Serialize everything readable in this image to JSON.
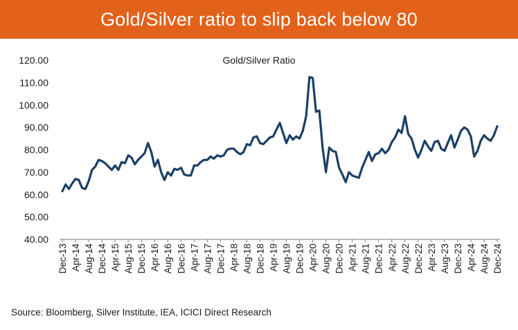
{
  "header": {
    "title": "Gold/Silver ratio to slip back below 80",
    "background_color": "#E2621B"
  },
  "footer": {
    "source": "Source: Bloomberg, Silver Institute, IEA, ICICI Direct Research"
  },
  "chart_data": {
    "type": "line",
    "title": "Gold/Silver Ratio",
    "xlabel": "",
    "ylabel": "",
    "ylim": [
      40,
      120
    ],
    "y_ticks": [
      "40.00",
      "50.00",
      "60.00",
      "70.00",
      "80.00",
      "90.00",
      "100.00",
      "110.00",
      "120.00"
    ],
    "grid": false,
    "legend": "none",
    "line_color": "#1B3F66",
    "x_tick_labels": [
      "Dec-13",
      "Apr-14",
      "Aug-14",
      "Dec-14",
      "Apr-15",
      "Aug-15",
      "Dec-15",
      "Apr-16",
      "Aug-16",
      "Dec-16",
      "Apr-17",
      "Aug-17",
      "Dec-17",
      "Apr-18",
      "Aug-18",
      "Dec-18",
      "Apr-19",
      "Aug-19",
      "Dec-19",
      "Apr-20",
      "Aug-20",
      "Dec-20",
      "Apr-21",
      "Aug-21",
      "Dec-21",
      "Apr-22",
      "Aug-22",
      "Dec-22",
      "Apr-23",
      "Aug-23",
      "Dec-23",
      "Apr-24",
      "Aug-24",
      "Dec-24"
    ],
    "series": [
      {
        "name": "Gold/Silver Ratio",
        "start": "Dec-13",
        "frequency": "monthly",
        "values": [
          61.5,
          64.5,
          62.5,
          65,
          67,
          66.5,
          63,
          62.5,
          66,
          71,
          72.5,
          75.5,
          75,
          74,
          72.5,
          71,
          73,
          71,
          74.5,
          74,
          77.5,
          76.5,
          73.5,
          75.5,
          77,
          78.5,
          83,
          79,
          72.5,
          75.5,
          70,
          66.5,
          70,
          68.5,
          71.5,
          71,
          72,
          69,
          68.5,
          68.5,
          73,
          73,
          74.5,
          75.5,
          75.5,
          77,
          76,
          77.5,
          77,
          77.5,
          80,
          80.5,
          80.5,
          79,
          78,
          79,
          82.5,
          82,
          85.5,
          86,
          83,
          82.5,
          84,
          85.5,
          86,
          89,
          92,
          87.5,
          83,
          86.5,
          84.5,
          86,
          85,
          88.5,
          95,
          112.5,
          112,
          97,
          97.5,
          81,
          70,
          81,
          79.5,
          79,
          72,
          69,
          65.5,
          70,
          68.5,
          68,
          67.5,
          72,
          75.5,
          79,
          75,
          78,
          78.5,
          80.5,
          78.5,
          80,
          83.5,
          85.5,
          89,
          87.5,
          95,
          87,
          85,
          80,
          76.5,
          80,
          84,
          81.5,
          79.5,
          83.5,
          84,
          80.5,
          79.5,
          83,
          86.5,
          81,
          84.5,
          88.5,
          90,
          89,
          86,
          77,
          79.5,
          84,
          86.5,
          85,
          84,
          86.5,
          90.5
        ]
      }
    ]
  }
}
